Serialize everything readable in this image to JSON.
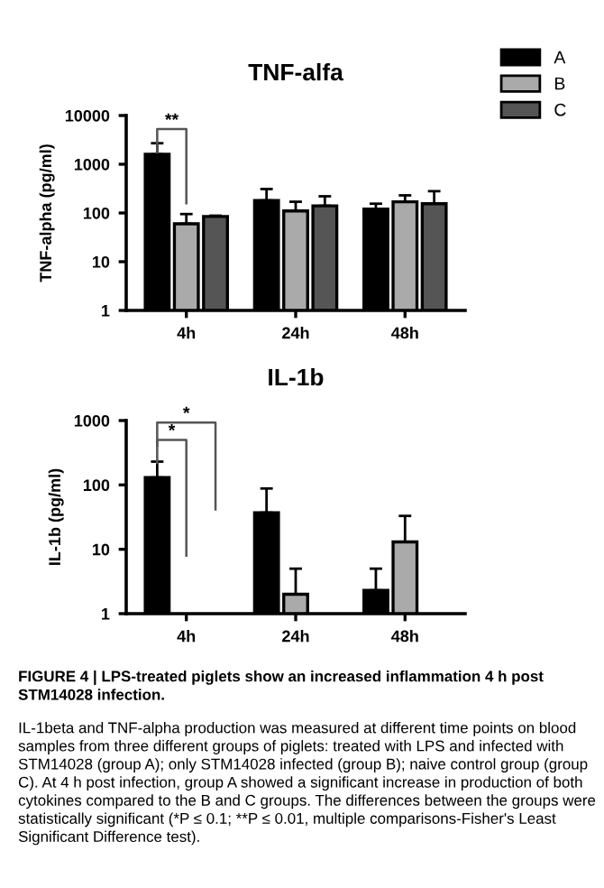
{
  "chart_data": [
    {
      "type": "bar",
      "title": "TNF-alfa",
      "ylabel": "TNF-alpha (pg/ml)",
      "categories": [
        "4h",
        "24h",
        "48h"
      ],
      "log": "y",
      "ylim": [
        1,
        10000
      ],
      "yticks": [
        1,
        10,
        100,
        1000,
        10000
      ],
      "legend": "top right",
      "grid": false,
      "series": [
        {
          "name": "A",
          "color": "#000000",
          "values": [
            1600,
            180,
            120
          ],
          "errors": [
            [
              1600,
              2700
            ],
            [
              180,
              310
            ],
            [
              120,
              155
            ]
          ]
        },
        {
          "name": "B",
          "color": "#aaaaaa",
          "values": [
            60,
            110,
            170
          ],
          "errors": [
            [
              60,
              95
            ],
            [
              110,
              170
            ],
            [
              170,
              230
            ]
          ]
        },
        {
          "name": "C",
          "color": "#555555",
          "values": [
            85,
            140,
            155
          ],
          "errors": [
            [
              85,
              88
            ],
            [
              140,
              220
            ],
            [
              155,
              280
            ]
          ]
        }
      ],
      "annotations": [
        "**"
      ]
    },
    {
      "type": "bar",
      "title": "IL-1b",
      "ylabel": "IL-1b (pg/ml)",
      "categories": [
        "4h",
        "24h",
        "48h"
      ],
      "log": "y",
      "ylim": [
        1,
        1000
      ],
      "yticks": [
        1,
        10,
        100,
        1000
      ],
      "grid": false,
      "series": [
        {
          "color": "#000000",
          "values": [
            130,
            37,
            2.3
          ],
          "errors": [
            [
              130,
              230
            ],
            [
              37,
              88
            ],
            [
              2.3,
              5
            ]
          ]
        },
        {
          "color": "#aaaaaa",
          "values": [
            null,
            2,
            13
          ],
          "errors": [
            null,
            [
              2,
              5
            ],
            [
              13,
              33
            ]
          ]
        }
      ],
      "annotations": [
        "*",
        "*",
        "FIGURE 4 | LPS-treated piglets show an increased inflammation 4 h post STM14028 infection.",
        "IL-1beta and TNF-alpha production was measured at different time points on blood samples from three different groups of piglets: treated with LPS and infected with STM14028 (group A); only STM14028 infected (group B); naive control group (group C). At 4 h post infection, group A showed a significant increase in production of both cytokines compared to the B and C groups. The differences between the groups were statistically significant (*P ≤ 0.1; **P ≤ 0.01, multiple comparisons-Fisher's Least Significant Difference test)."
      ]
    }
  ]
}
